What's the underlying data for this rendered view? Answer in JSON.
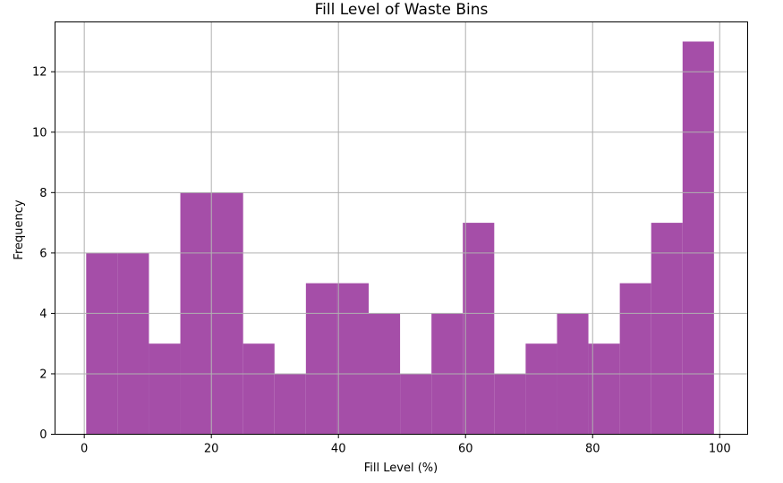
{
  "chart_data": {
    "type": "bar",
    "title": "Fill Level of Waste Bins",
    "xlabel": "Fill Level (%)",
    "ylabel": "Frequency",
    "bin_width": 4.94,
    "bins": [
      {
        "start": 0.3,
        "count": 6
      },
      {
        "start": 5.24,
        "count": 6
      },
      {
        "start": 10.18,
        "count": 3
      },
      {
        "start": 15.12,
        "count": 8
      },
      {
        "start": 20.06,
        "count": 8
      },
      {
        "start": 25.0,
        "count": 3
      },
      {
        "start": 29.94,
        "count": 2
      },
      {
        "start": 34.88,
        "count": 5
      },
      {
        "start": 39.82,
        "count": 5
      },
      {
        "start": 44.76,
        "count": 4
      },
      {
        "start": 49.7,
        "count": 2
      },
      {
        "start": 54.64,
        "count": 4
      },
      {
        "start": 59.58,
        "count": 7
      },
      {
        "start": 64.52,
        "count": 2
      },
      {
        "start": 69.46,
        "count": 3
      },
      {
        "start": 74.4,
        "count": 4
      },
      {
        "start": 79.34,
        "count": 3
      },
      {
        "start": 84.28,
        "count": 5
      },
      {
        "start": 89.22,
        "count": 7
      },
      {
        "start": 94.16,
        "count": 13
      }
    ],
    "xlim": [
      -4.6,
      104.4
    ],
    "ylim": [
      0,
      13.65
    ],
    "xticks": [
      0,
      20,
      40,
      60,
      80,
      100
    ],
    "yticks": [
      0,
      2,
      4,
      6,
      8,
      10,
      12
    ],
    "grid": true,
    "colors": {
      "bar": "#a54ea8",
      "grid": "#b0b0b0",
      "axes": "#000000"
    }
  }
}
